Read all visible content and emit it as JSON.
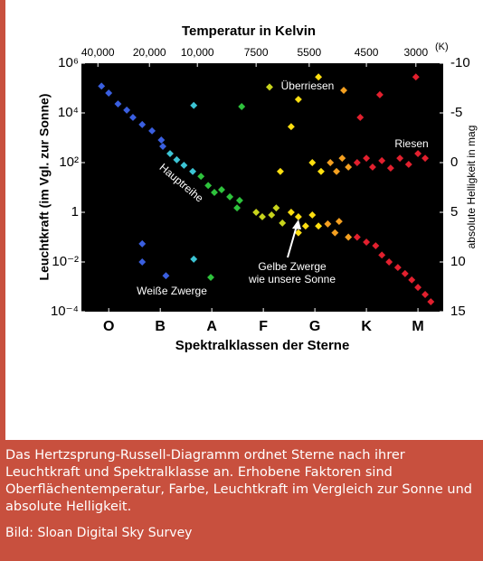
{
  "chart_data": {
    "type": "scatter",
    "title": "Temperatur in Kelvin",
    "temperature_unit": "(K)",
    "x_label": "Spektralklassen der Sterne",
    "y_label": "Leuchtkraft (im Vgl. zur Sonne)",
    "y2_label": "absolute Helligkeit in mag",
    "xlim": [
      -0.53,
      6.49
    ],
    "xticks": [
      {
        "value": 0,
        "label": "O"
      },
      {
        "value": 1,
        "label": "B"
      },
      {
        "value": 2,
        "label": "A"
      },
      {
        "value": 3,
        "label": "F"
      },
      {
        "value": 4,
        "label": "G"
      },
      {
        "value": 5,
        "label": "K"
      },
      {
        "value": 6,
        "label": "M"
      }
    ],
    "temperature_ticks": [
      {
        "value": -0.21,
        "label": "40,000"
      },
      {
        "value": 0.79,
        "label": "20,000"
      },
      {
        "value": 1.72,
        "label": "10,000"
      },
      {
        "value": 2.86,
        "label": "7500"
      },
      {
        "value": 3.89,
        "label": "5500"
      },
      {
        "value": 5.0,
        "label": "4500"
      },
      {
        "value": 5.96,
        "label": "3000"
      }
    ],
    "ylog": true,
    "ylim": [
      0.0001,
      1000000
    ],
    "yticks": [
      {
        "value": 1000000,
        "label": "10⁶"
      },
      {
        "value": 10000,
        "label": "10⁴"
      },
      {
        "value": 100,
        "label": "10²"
      },
      1,
      {
        "value": 0.01,
        "label": "10⁻²"
      },
      {
        "value": 0.0001,
        "label": "10⁻⁴"
      }
    ],
    "y2lim": [
      15,
      -10
    ],
    "y2ticks": [
      -10,
      -5,
      0,
      5,
      10,
      15
    ],
    "background": "#000000",
    "series": [
      {
        "color": "#3a5fe0",
        "x": [
          -0.14,
          0,
          0.18,
          0.35,
          0.47,
          0.65,
          0.84,
          1.02,
          1.05,
          0.65,
          0.65,
          1.11
        ],
        "y": [
          120000,
          63000,
          23000,
          13000,
          6600,
          3400,
          1900,
          810,
          450,
          0.054,
          0.01,
          0.0028
        ]
      },
      {
        "color": "#3cc4d4",
        "x": [
          1.19,
          1.32,
          1.46,
          1.63,
          1.65,
          1.65
        ],
        "y": [
          230,
          130,
          78,
          44,
          20000,
          0.013
        ]
      },
      {
        "color": "#2ec23c",
        "x": [
          1.79,
          1.93,
          2.05,
          2.19,
          2.35,
          2.54,
          2.58,
          1.98,
          2.49
        ],
        "y": [
          28,
          12,
          6.3,
          8.1,
          4.2,
          3.0,
          18000,
          0.0024,
          1.5
        ]
      },
      {
        "color": "#c8d41c",
        "x": [
          2.86,
          2.98,
          3.12,
          3.16,
          3.37,
          3.25
        ],
        "y": [
          1,
          0.66,
          110000,
          0.78,
          0.37,
          1.5
        ]
      },
      {
        "color": "#ffdf10",
        "x": [
          3.54,
          3.68,
          3.82,
          3.95,
          3.68,
          4.07,
          3.68,
          3.54,
          3.33,
          3.95,
          4.12,
          4.07
        ],
        "y": [
          1,
          0.66,
          0.28,
          0.78,
          0.15,
          280000,
          35000,
          2800,
          44,
          100,
          44,
          0.28
        ]
      },
      {
        "color": "#f5a020",
        "x": [
          4.56,
          4.25,
          4.39,
          4.47,
          4.65,
          4.3,
          4.42,
          4.53,
          4.65
        ],
        "y": [
          81000,
          0.34,
          0.15,
          0.43,
          0.1,
          100,
          44,
          150,
          66
        ]
      },
      {
        "color": "#e2202e",
        "x": [
          5.96,
          5.26,
          4.88,
          4.82,
          5.0,
          5.12,
          5.3,
          5.47,
          5.65,
          5.82,
          6.0,
          6.14,
          4.82,
          5.0,
          5.18,
          5.3,
          5.44,
          5.61,
          5.75,
          5.88,
          6.0,
          6.14,
          6.25
        ],
        "y": [
          280000,
          54000,
          6600,
          100,
          150,
          66,
          120,
          60,
          150,
          85,
          230,
          150,
          0.1,
          0.063,
          0.045,
          0.019,
          0.01,
          0.006,
          0.0034,
          0.0019,
          0.00095,
          0.00049,
          0.00025
        ]
      }
    ],
    "annotations": [
      "Überriesen",
      "Riesen",
      "Hauptreihe",
      "Gelbe Zwerge",
      "wie unsere Sonne",
      "Weiße Zwerge"
    ]
  },
  "caption": "Das Hertzsprung-Russell-Diagramm ordnet Sterne nach ihrer Leuchtkraft und Spektralklasse an. Erhobene Faktoren sind Oberflächentemperatur, Farbe, Leuchtkraft im Vergleich zur Sonne und absolute Helligkeit.",
  "credit": "Bild: Sloan Digital Sky Survey"
}
